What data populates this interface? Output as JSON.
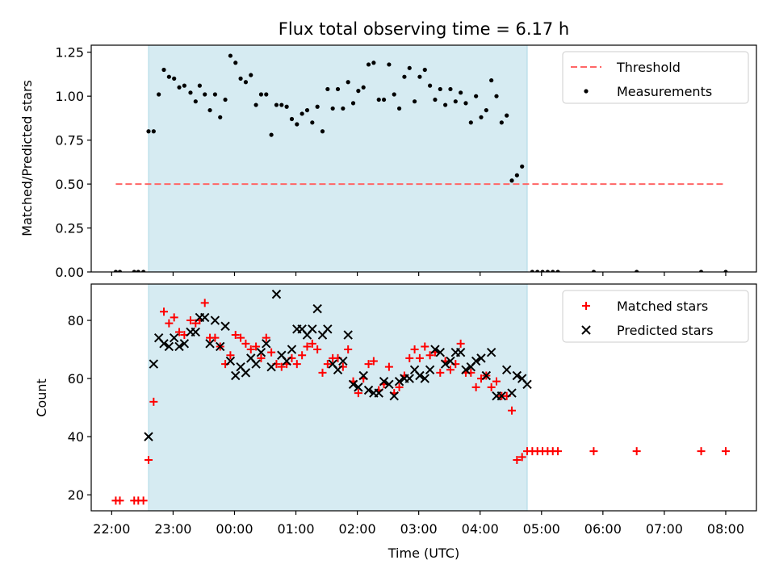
{
  "chart_data": [
    {
      "type": "scatter",
      "title": "Flux total observing time = 6.17 h",
      "xlabel": "",
      "ylabel": "Matched/Predicted stars",
      "xlim": [
        "21:40",
        "08:30"
      ],
      "ylim": [
        0,
        1.29
      ],
      "yticks": [
        0.0,
        0.25,
        0.5,
        0.75,
        1.0,
        1.25
      ],
      "ytick_labels": [
        "0.00",
        "0.25",
        "0.50",
        "0.75",
        "1.00",
        "1.25"
      ],
      "shaded_span": [
        "22:36",
        "04:46"
      ],
      "threshold": {
        "name": "Threshold",
        "y": 0.5,
        "x_range": [
          "22:04",
          "08:00"
        ],
        "color": "#ff6666"
      },
      "legend": {
        "placement": "top-right",
        "entries": [
          "Threshold",
          "Measurements"
        ]
      },
      "series": [
        {
          "name": "Measurements",
          "color": "#000000",
          "points": [
            [
              "22:04",
              0
            ],
            [
              "22:08",
              0
            ],
            [
              "22:22",
              0
            ],
            [
              "22:26",
              0
            ],
            [
              "22:31",
              0
            ],
            [
              "22:36",
              0.8
            ],
            [
              "22:41",
              0.8
            ],
            [
              "22:46",
              1.01
            ],
            [
              "22:51",
              1.15
            ],
            [
              "22:56",
              1.11
            ],
            [
              "23:01",
              1.1
            ],
            [
              "23:06",
              1.05
            ],
            [
              "23:11",
              1.06
            ],
            [
              "23:17",
              1.02
            ],
            [
              "23:22",
              0.97
            ],
            [
              "23:26",
              1.06
            ],
            [
              "23:31",
              1.01
            ],
            [
              "23:36",
              0.92
            ],
            [
              "23:41",
              1.01
            ],
            [
              "23:46",
              0.88
            ],
            [
              "23:51",
              0.98
            ],
            [
              "23:56",
              1.23
            ],
            [
              "00:01",
              1.19
            ],
            [
              "00:06",
              1.1
            ],
            [
              "00:11",
              1.08
            ],
            [
              "00:16",
              1.12
            ],
            [
              "00:21",
              0.95
            ],
            [
              "00:26",
              1.01
            ],
            [
              "00:31",
              1.01
            ],
            [
              "00:36",
              0.78
            ],
            [
              "00:41",
              0.95
            ],
            [
              "00:46",
              0.95
            ],
            [
              "00:51",
              0.94
            ],
            [
              "00:56",
              0.87
            ],
            [
              "01:01",
              0.84
            ],
            [
              "01:06",
              0.9
            ],
            [
              "01:11",
              0.92
            ],
            [
              "01:16",
              0.85
            ],
            [
              "01:21",
              0.94
            ],
            [
              "01:26",
              0.8
            ],
            [
              "01:31",
              1.04
            ],
            [
              "01:36",
              0.93
            ],
            [
              "01:41",
              1.04
            ],
            [
              "01:46",
              0.93
            ],
            [
              "01:51",
              1.08
            ],
            [
              "01:56",
              0.96
            ],
            [
              "02:01",
              1.03
            ],
            [
              "02:06",
              1.05
            ],
            [
              "02:11",
              1.18
            ],
            [
              "02:16",
              1.19
            ],
            [
              "02:21",
              0.98
            ],
            [
              "02:26",
              0.98
            ],
            [
              "02:31",
              1.18
            ],
            [
              "02:36",
              1.01
            ],
            [
              "02:41",
              0.93
            ],
            [
              "02:46",
              1.11
            ],
            [
              "02:51",
              1.16
            ],
            [
              "02:56",
              0.97
            ],
            [
              "03:01",
              1.11
            ],
            [
              "03:06",
              1.15
            ],
            [
              "03:11",
              1.06
            ],
            [
              "03:16",
              0.98
            ],
            [
              "03:21",
              1.04
            ],
            [
              "03:26",
              0.95
            ],
            [
              "03:31",
              1.04
            ],
            [
              "03:36",
              0.97
            ],
            [
              "03:41",
              1.02
            ],
            [
              "03:46",
              0.96
            ],
            [
              "03:51",
              0.85
            ],
            [
              "03:56",
              1.0
            ],
            [
              "04:01",
              0.88
            ],
            [
              "04:06",
              0.92
            ],
            [
              "04:11",
              1.09
            ],
            [
              "04:16",
              1.0
            ],
            [
              "04:21",
              0.85
            ],
            [
              "04:26",
              0.89
            ],
            [
              "04:31",
              0.52
            ],
            [
              "04:36",
              0.55
            ],
            [
              "04:41",
              0.6
            ],
            [
              "04:51",
              0
            ],
            [
              "04:56",
              0
            ],
            [
              "05:01",
              0
            ],
            [
              "05:06",
              0
            ],
            [
              "05:11",
              0
            ],
            [
              "05:16",
              0
            ],
            [
              "05:51",
              0
            ],
            [
              "06:33",
              0
            ],
            [
              "07:36",
              0
            ],
            [
              "08:00",
              0
            ]
          ]
        }
      ]
    },
    {
      "type": "scatter",
      "title": "",
      "xlabel": "Time (UTC)",
      "ylabel": "Count",
      "xlim": [
        "21:40",
        "08:30"
      ],
      "ylim": [
        14.5,
        92.5
      ],
      "yticks": [
        20,
        40,
        60,
        80
      ],
      "xticks": [
        "22:00",
        "23:00",
        "00:00",
        "01:00",
        "02:00",
        "03:00",
        "04:00",
        "05:00",
        "06:00",
        "07:00",
        "08:00"
      ],
      "shaded_span": [
        "22:36",
        "04:46"
      ],
      "legend": {
        "placement": "top-right",
        "entries": [
          "Matched stars",
          "Predicted stars"
        ]
      },
      "series": [
        {
          "name": "Matched stars",
          "color": "#ff0000",
          "marker": "plus",
          "points": [
            [
              "22:04",
              18
            ],
            [
              "22:08",
              18
            ],
            [
              "22:22",
              18
            ],
            [
              "22:26",
              18
            ],
            [
              "22:31",
              18
            ],
            [
              "22:36",
              32
            ],
            [
              "22:41",
              52
            ],
            [
              "22:51",
              83
            ],
            [
              "22:56",
              79
            ],
            [
              "23:01",
              81
            ],
            [
              "23:06",
              76
            ],
            [
              "23:11",
              75
            ],
            [
              "23:17",
              80
            ],
            [
              "23:22",
              79
            ],
            [
              "23:26",
              80
            ],
            [
              "23:31",
              86
            ],
            [
              "23:36",
              74
            ],
            [
              "23:41",
              74
            ],
            [
              "23:46",
              71
            ],
            [
              "23:51",
              65
            ],
            [
              "23:56",
              68
            ],
            [
              "00:01",
              75
            ],
            [
              "00:06",
              74
            ],
            [
              "00:11",
              72
            ],
            [
              "00:16",
              70
            ],
            [
              "00:21",
              71
            ],
            [
              "00:26",
              67
            ],
            [
              "00:31",
              74
            ],
            [
              "00:36",
              69
            ],
            [
              "00:41",
              65
            ],
            [
              "00:46",
              64
            ],
            [
              "00:51",
              65
            ],
            [
              "00:56",
              67
            ],
            [
              "01:01",
              65
            ],
            [
              "01:06",
              68
            ],
            [
              "01:11",
              71
            ],
            [
              "01:16",
              72
            ],
            [
              "01:21",
              70
            ],
            [
              "01:26",
              62
            ],
            [
              "01:31",
              65
            ],
            [
              "01:36",
              67
            ],
            [
              "01:41",
              67
            ],
            [
              "01:46",
              64
            ],
            [
              "01:51",
              70
            ],
            [
              "01:56",
              59
            ],
            [
              "02:01",
              55
            ],
            [
              "02:06",
              60
            ],
            [
              "02:11",
              65
            ],
            [
              "02:16",
              66
            ],
            [
              "02:21",
              56
            ],
            [
              "02:26",
              58
            ],
            [
              "02:31",
              64
            ],
            [
              "02:36",
              55
            ],
            [
              "02:41",
              57
            ],
            [
              "02:46",
              61
            ],
            [
              "02:51",
              67
            ],
            [
              "02:56",
              70
            ],
            [
              "03:01",
              67
            ],
            [
              "03:06",
              71
            ],
            [
              "03:11",
              68
            ],
            [
              "03:16",
              69
            ],
            [
              "03:21",
              62
            ],
            [
              "03:26",
              66
            ],
            [
              "03:31",
              63
            ],
            [
              "03:36",
              65
            ],
            [
              "03:41",
              72
            ],
            [
              "03:46",
              62
            ],
            [
              "03:51",
              62
            ],
            [
              "03:56",
              57
            ],
            [
              "04:01",
              60
            ],
            [
              "04:06",
              61
            ],
            [
              "04:11",
              57
            ],
            [
              "04:16",
              59
            ],
            [
              "04:21",
              54
            ],
            [
              "04:26",
              54
            ],
            [
              "04:31",
              49
            ],
            [
              "04:36",
              32
            ],
            [
              "04:41",
              33
            ],
            [
              "04:46",
              35
            ],
            [
              "04:51",
              35
            ],
            [
              "04:56",
              35
            ],
            [
              "05:01",
              35
            ],
            [
              "05:06",
              35
            ],
            [
              "05:11",
              35
            ],
            [
              "05:16",
              35
            ],
            [
              "05:51",
              35
            ],
            [
              "06:33",
              35
            ],
            [
              "07:36",
              35
            ],
            [
              "08:00",
              35
            ]
          ]
        },
        {
          "name": "Predicted stars",
          "color": "#000000",
          "marker": "x",
          "points": [
            [
              "22:36",
              40
            ],
            [
              "22:41",
              65
            ],
            [
              "22:46",
              74
            ],
            [
              "22:51",
              72
            ],
            [
              "22:56",
              71
            ],
            [
              "23:01",
              74
            ],
            [
              "23:06",
              71
            ],
            [
              "23:11",
              72
            ],
            [
              "23:17",
              76
            ],
            [
              "23:22",
              76
            ],
            [
              "23:26",
              81
            ],
            [
              "23:31",
              81
            ],
            [
              "23:36",
              72
            ],
            [
              "23:41",
              80
            ],
            [
              "23:46",
              71
            ],
            [
              "23:51",
              78
            ],
            [
              "23:56",
              66
            ],
            [
              "00:01",
              61
            ],
            [
              "00:06",
              64
            ],
            [
              "00:11",
              62
            ],
            [
              "00:16",
              67
            ],
            [
              "00:21",
              65
            ],
            [
              "00:26",
              69
            ],
            [
              "00:31",
              72
            ],
            [
              "00:36",
              64
            ],
            [
              "00:41",
              89
            ],
            [
              "00:46",
              68
            ],
            [
              "00:51",
              66
            ],
            [
              "00:56",
              70
            ],
            [
              "01:01",
              77
            ],
            [
              "01:06",
              77
            ],
            [
              "01:11",
              75
            ],
            [
              "01:16",
              77
            ],
            [
              "01:21",
              84
            ],
            [
              "01:26",
              75
            ],
            [
              "01:31",
              77
            ],
            [
              "01:36",
              65
            ],
            [
              "01:41",
              63
            ],
            [
              "01:46",
              66
            ],
            [
              "01:51",
              75
            ],
            [
              "01:56",
              58
            ],
            [
              "02:01",
              57
            ],
            [
              "02:06",
              61
            ],
            [
              "02:11",
              56
            ],
            [
              "02:16",
              55
            ],
            [
              "02:21",
              55
            ],
            [
              "02:26",
              59
            ],
            [
              "02:31",
              58
            ],
            [
              "02:36",
              54
            ],
            [
              "02:41",
              59
            ],
            [
              "02:46",
              60
            ],
            [
              "02:51",
              60
            ],
            [
              "02:56",
              63
            ],
            [
              "03:01",
              61
            ],
            [
              "03:06",
              60
            ],
            [
              "03:11",
              63
            ],
            [
              "03:16",
              70
            ],
            [
              "03:21",
              69
            ],
            [
              "03:26",
              65
            ],
            [
              "03:31",
              66
            ],
            [
              "03:36",
              69
            ],
            [
              "03:41",
              69
            ],
            [
              "03:46",
              63
            ],
            [
              "03:51",
              64
            ],
            [
              "03:56",
              66
            ],
            [
              "04:01",
              67
            ],
            [
              "04:06",
              61
            ],
            [
              "04:11",
              69
            ],
            [
              "04:16",
              54
            ],
            [
              "04:21",
              54
            ],
            [
              "04:26",
              63
            ],
            [
              "04:31",
              55
            ],
            [
              "04:36",
              61
            ],
            [
              "04:41",
              60
            ],
            [
              "04:46",
              58
            ]
          ]
        }
      ]
    }
  ]
}
